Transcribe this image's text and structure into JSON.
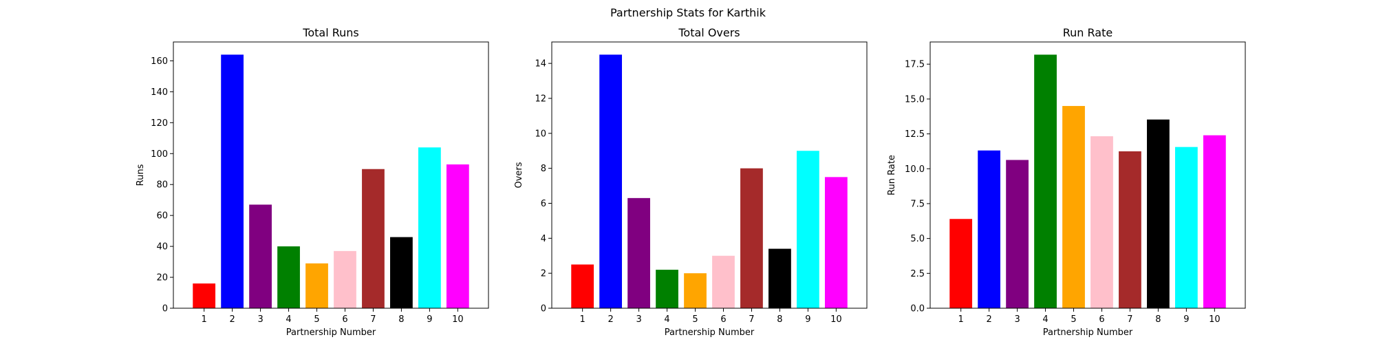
{
  "figure": {
    "suptitle": "Partnership Stats for Karthik"
  },
  "chart_data": [
    {
      "type": "bar",
      "title": "Total Runs",
      "xlabel": "Partnership Number",
      "ylabel": "Runs",
      "categories": [
        "1",
        "2",
        "3",
        "4",
        "5",
        "6",
        "7",
        "8",
        "9",
        "10"
      ],
      "values": [
        16,
        164,
        67,
        40,
        29,
        37,
        90,
        46,
        104,
        93
      ],
      "colors": [
        "#ff0000",
        "#0000ff",
        "#800080",
        "#008000",
        "#ffa500",
        "#ffc0cb",
        "#a52a2a",
        "#000000",
        "#00ffff",
        "#ff00ff"
      ],
      "ylim": [
        0,
        172.2
      ],
      "yticks": [
        0,
        20,
        40,
        60,
        80,
        100,
        120,
        140,
        160
      ],
      "ytick_labels": [
        "0",
        "20",
        "40",
        "60",
        "80",
        "100",
        "120",
        "140",
        "160"
      ],
      "grid": false
    },
    {
      "type": "bar",
      "title": "Total Overs",
      "xlabel": "Partnership Number",
      "ylabel": "Overs",
      "categories": [
        "1",
        "2",
        "3",
        "4",
        "5",
        "6",
        "7",
        "8",
        "9",
        "10"
      ],
      "values": [
        2.5,
        14.5,
        6.3,
        2.2,
        2.0,
        3.0,
        8.0,
        3.4,
        9.0,
        7.5
      ],
      "colors": [
        "#ff0000",
        "#0000ff",
        "#800080",
        "#008000",
        "#ffa500",
        "#ffc0cb",
        "#a52a2a",
        "#000000",
        "#00ffff",
        "#ff00ff"
      ],
      "ylim": [
        0,
        15.225
      ],
      "yticks": [
        0,
        2,
        4,
        6,
        8,
        10,
        12,
        14
      ],
      "ytick_labels": [
        "0",
        "2",
        "4",
        "6",
        "8",
        "10",
        "12",
        "14"
      ],
      "grid": false
    },
    {
      "type": "bar",
      "title": "Run Rate",
      "xlabel": "Partnership Number",
      "ylabel": "Run Rate",
      "categories": [
        "1",
        "2",
        "3",
        "4",
        "5",
        "6",
        "7",
        "8",
        "9",
        "10"
      ],
      "values": [
        6.4,
        11.31,
        10.63,
        18.18,
        14.5,
        12.33,
        11.25,
        13.53,
        11.56,
        12.4
      ],
      "colors": [
        "#ff0000",
        "#0000ff",
        "#800080",
        "#008000",
        "#ffa500",
        "#ffc0cb",
        "#a52a2a",
        "#000000",
        "#00ffff",
        "#ff00ff"
      ],
      "ylim": [
        0,
        19.09
      ],
      "yticks": [
        0,
        2.5,
        5,
        7.5,
        10,
        12.5,
        15,
        17.5
      ],
      "ytick_labels": [
        "0.0",
        "2.5",
        "5.0",
        "7.5",
        "10.0",
        "12.5",
        "15.0",
        "17.5"
      ],
      "grid": false
    }
  ]
}
